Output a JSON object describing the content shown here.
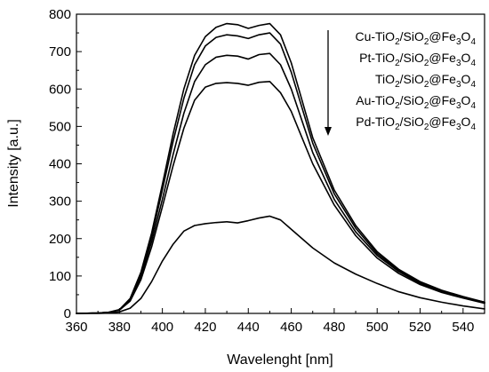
{
  "chart_data": {
    "type": "line",
    "title": "",
    "xlabel": "Wavelenght [nm]",
    "ylabel": "Intensity [a.u.]",
    "xlim": [
      360,
      550
    ],
    "ylim": [
      0,
      800
    ],
    "x_ticks": [
      360,
      380,
      400,
      420,
      440,
      460,
      480,
      500,
      520,
      540
    ],
    "y_ticks": [
      0,
      100,
      200,
      300,
      400,
      500,
      600,
      700,
      800
    ],
    "grid": false,
    "legend_position": "top-right",
    "legend_arrow": "down",
    "series": [
      {
        "name": "Cu-TiO2/SiO2@Fe3O4",
        "x": [
          360,
          370,
          375,
          380,
          385,
          390,
          395,
          400,
          405,
          410,
          415,
          420,
          425,
          430,
          435,
          440,
          445,
          450,
          455,
          460,
          465,
          470,
          480,
          490,
          500,
          510,
          520,
          530,
          540,
          550
        ],
        "y": [
          0,
          1,
          3,
          10,
          40,
          110,
          215,
          345,
          480,
          600,
          690,
          740,
          765,
          775,
          772,
          762,
          770,
          775,
          745,
          670,
          570,
          470,
          330,
          235,
          165,
          118,
          85,
          62,
          45,
          30
        ]
      },
      {
        "name": "Pt-TiO2/SiO2@Fe3O4",
        "x": [
          360,
          370,
          375,
          380,
          385,
          390,
          395,
          400,
          405,
          410,
          415,
          420,
          425,
          430,
          435,
          440,
          445,
          450,
          455,
          460,
          465,
          470,
          480,
          490,
          500,
          510,
          520,
          530,
          540,
          550
        ],
        "y": [
          0,
          1,
          3,
          10,
          38,
          105,
          205,
          330,
          460,
          575,
          665,
          715,
          738,
          745,
          742,
          735,
          745,
          750,
          720,
          645,
          550,
          455,
          320,
          228,
          160,
          115,
          82,
          60,
          44,
          30
        ]
      },
      {
        "name": "TiO2/SiO2@Fe3O4",
        "x": [
          360,
          370,
          375,
          380,
          385,
          390,
          395,
          400,
          405,
          410,
          415,
          420,
          425,
          430,
          435,
          440,
          445,
          450,
          455,
          460,
          465,
          470,
          480,
          490,
          500,
          510,
          520,
          530,
          540,
          550
        ],
        "y": [
          0,
          1,
          3,
          9,
          35,
          98,
          192,
          305,
          425,
          535,
          620,
          665,
          685,
          690,
          688,
          680,
          692,
          695,
          665,
          600,
          515,
          430,
          305,
          218,
          155,
          112,
          80,
          58,
          42,
          28
        ]
      },
      {
        "name": "Au-TiO2/SiO2@Fe3O4",
        "x": [
          360,
          370,
          375,
          380,
          385,
          390,
          395,
          400,
          405,
          410,
          415,
          420,
          425,
          430,
          435,
          440,
          445,
          450,
          455,
          460,
          465,
          470,
          480,
          490,
          500,
          510,
          520,
          530,
          540,
          550
        ],
        "y": [
          0,
          1,
          3,
          9,
          33,
          90,
          178,
          285,
          395,
          495,
          570,
          605,
          615,
          617,
          615,
          610,
          618,
          620,
          590,
          540,
          470,
          400,
          290,
          208,
          148,
          107,
          77,
          56,
          41,
          27
        ]
      },
      {
        "name": "Pd-TiO2/SiO2@Fe3O4",
        "x": [
          360,
          370,
          375,
          380,
          385,
          390,
          395,
          400,
          405,
          410,
          415,
          420,
          425,
          430,
          435,
          440,
          445,
          450,
          455,
          460,
          465,
          470,
          480,
          490,
          500,
          510,
          520,
          530,
          540,
          550
        ],
        "y": [
          0,
          0,
          1,
          4,
          14,
          40,
          85,
          140,
          185,
          220,
          235,
          240,
          243,
          245,
          242,
          248,
          255,
          260,
          250,
          225,
          200,
          175,
          135,
          105,
          80,
          58,
          42,
          30,
          20,
          12
        ]
      }
    ],
    "legend": [
      {
        "parts": [
          "Cu-TiO",
          "2",
          "/SiO",
          "2",
          "@Fe",
          "3",
          "O",
          "4"
        ]
      },
      {
        "parts": [
          "Pt-TiO",
          "2",
          "/SiO",
          "2",
          "@Fe",
          "3",
          "O",
          "4"
        ]
      },
      {
        "parts": [
          "TiO",
          "2",
          "/SiO",
          "2",
          "@Fe",
          "3",
          "O",
          "4"
        ]
      },
      {
        "parts": [
          "Au-TiO",
          "2",
          "/SiO",
          "2",
          "@Fe",
          "3",
          "O",
          "4"
        ]
      },
      {
        "parts": [
          "Pd-TiO",
          "2",
          "/SiO",
          "2",
          "@Fe",
          "3",
          "O",
          "4"
        ]
      }
    ],
    "line_color": "#000000"
  }
}
